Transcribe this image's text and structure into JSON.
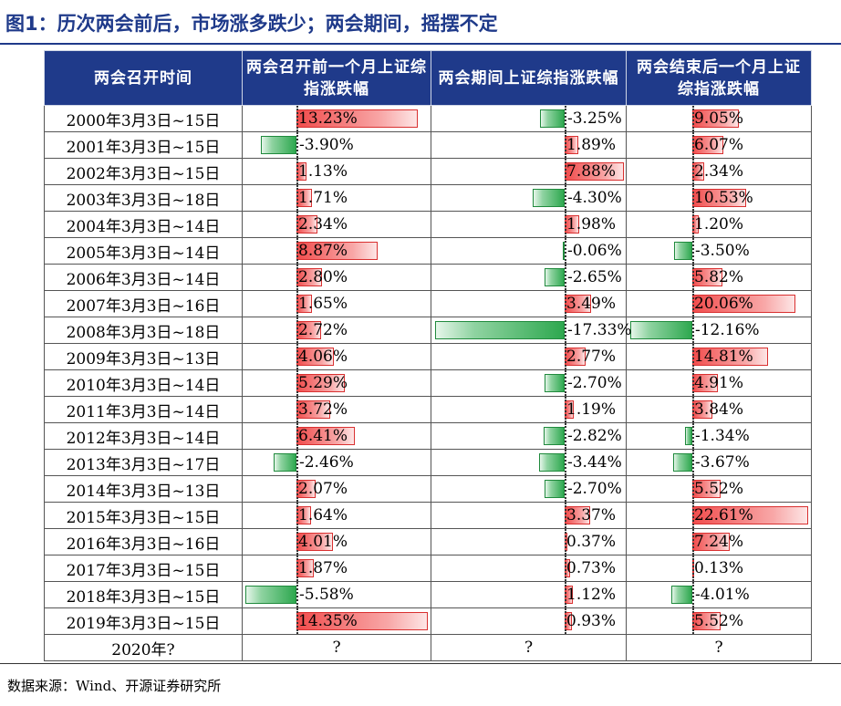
{
  "title": "图1：历次两会前后，市场涨多跌少；两会期间，摇摆不定",
  "headers": [
    "两会召开时间",
    "两会召开前一个月上证综指涨跌幅",
    "两会期间上证综指涨跌幅",
    "两会结束后一个月上证综指涨跌幅"
  ],
  "colors": {
    "header_bg": "#1f3a8a",
    "title": "#1f3a8a",
    "positive_bar": "#f14d4d",
    "negative_bar": "#2ea84f"
  },
  "rows": [
    {
      "date": "2000年3月3日~15日",
      "before": {
        "text": "13.23%",
        "value": 13.23
      },
      "during": {
        "text": "-3.25%",
        "value": -3.25
      },
      "after": {
        "text": "9.05%",
        "value": 9.05
      }
    },
    {
      "date": "2001年3月3日~15日",
      "before": {
        "text": "-3.90%",
        "value": -3.9
      },
      "during": {
        "text": "1.89%",
        "value": 1.89
      },
      "after": {
        "text": "6.07%",
        "value": 6.07
      }
    },
    {
      "date": "2002年3月3日~15日",
      "before": {
        "text": "1.13%",
        "value": 1.13
      },
      "during": {
        "text": "7.88%",
        "value": 7.88
      },
      "after": {
        "text": "2.34%",
        "value": 2.34
      }
    },
    {
      "date": "2003年3月3日~18日",
      "before": {
        "text": "1.71%",
        "value": 1.71
      },
      "during": {
        "text": "-4.30%",
        "value": -4.3
      },
      "after": {
        "text": "10.53%",
        "value": 10.53
      }
    },
    {
      "date": "2004年3月3日~14日",
      "before": {
        "text": "2.34%",
        "value": 2.34
      },
      "during": {
        "text": "1.98%",
        "value": 1.98
      },
      "after": {
        "text": "1.20%",
        "value": 1.2
      }
    },
    {
      "date": "2005年3月3日~14日",
      "before": {
        "text": "8.87%",
        "value": 8.87
      },
      "during": {
        "text": "-0.06%",
        "value": -0.06
      },
      "after": {
        "text": "-3.50%",
        "value": -3.5
      }
    },
    {
      "date": "2006年3月3日~14日",
      "before": {
        "text": "2.80%",
        "value": 2.8
      },
      "during": {
        "text": "-2.65%",
        "value": -2.65
      },
      "after": {
        "text": "5.82%",
        "value": 5.82
      }
    },
    {
      "date": "2007年3月3日~16日",
      "before": {
        "text": "1.65%",
        "value": 1.65
      },
      "during": {
        "text": "3.49%",
        "value": 3.49
      },
      "after": {
        "text": "20.06%",
        "value": 20.06
      }
    },
    {
      "date": "2008年3月3日~18日",
      "before": {
        "text": "2.72%",
        "value": 2.72
      },
      "during": {
        "text": "-17.33%",
        "value": -17.33
      },
      "after": {
        "text": "-12.16%",
        "value": -12.16
      }
    },
    {
      "date": "2009年3月3日~13日",
      "before": {
        "text": "4.06%",
        "value": 4.06
      },
      "during": {
        "text": "2.77%",
        "value": 2.77
      },
      "after": {
        "text": "14.81%",
        "value": 14.81
      }
    },
    {
      "date": "2010年3月3日~14日",
      "before": {
        "text": "5.29%",
        "value": 5.29
      },
      "during": {
        "text": "-2.70%",
        "value": -2.7
      },
      "after": {
        "text": "4.91%",
        "value": 4.91
      }
    },
    {
      "date": "2011年3月3日~14日",
      "before": {
        "text": "3.72%",
        "value": 3.72
      },
      "during": {
        "text": "1.19%",
        "value": 1.19
      },
      "after": {
        "text": "3.84%",
        "value": 3.84
      }
    },
    {
      "date": "2012年3月3日~14日",
      "before": {
        "text": "6.41%",
        "value": 6.41
      },
      "during": {
        "text": "-2.82%",
        "value": -2.82
      },
      "after": {
        "text": "-1.34%",
        "value": -1.34
      }
    },
    {
      "date": "2013年3月3日~17日",
      "before": {
        "text": "-2.46%",
        "value": -2.46
      },
      "during": {
        "text": "-3.44%",
        "value": -3.44
      },
      "after": {
        "text": "-3.67%",
        "value": -3.67
      }
    },
    {
      "date": "2014年3月3日~13日",
      "before": {
        "text": "2.07%",
        "value": 2.07
      },
      "during": {
        "text": "-2.70%",
        "value": -2.7
      },
      "after": {
        "text": "5.52%",
        "value": 5.52
      }
    },
    {
      "date": "2015年3月3日~15日",
      "before": {
        "text": "1.64%",
        "value": 1.64
      },
      "during": {
        "text": "3.37%",
        "value": 3.37
      },
      "after": {
        "text": "22.61%",
        "value": 22.61
      }
    },
    {
      "date": "2016年3月3日~16日",
      "before": {
        "text": "4.01%",
        "value": 4.01
      },
      "during": {
        "text": "0.37%",
        "value": 0.37
      },
      "after": {
        "text": "7.24%",
        "value": 7.24
      }
    },
    {
      "date": "2017年3月3日~15日",
      "before": {
        "text": "1.87%",
        "value": 1.87
      },
      "during": {
        "text": "0.73%",
        "value": 0.73
      },
      "after": {
        "text": "0.13%",
        "value": 0.13
      }
    },
    {
      "date": "2018年3月3日~15日",
      "before": {
        "text": "-5.58%",
        "value": -5.58
      },
      "during": {
        "text": "1.12%",
        "value": 1.12
      },
      "after": {
        "text": "-4.01%",
        "value": -4.01
      }
    },
    {
      "date": "2019年3月3日~15日",
      "before": {
        "text": "14.35%",
        "value": 14.35
      },
      "during": {
        "text": "0.93%",
        "value": 0.93
      },
      "after": {
        "text": "5.52%",
        "value": 5.52
      }
    }
  ],
  "last_row": {
    "date": "2020年?",
    "before": "?",
    "during": "?",
    "after": "?"
  },
  "source": "数据来源：Wind、开源证券研究所"
}
